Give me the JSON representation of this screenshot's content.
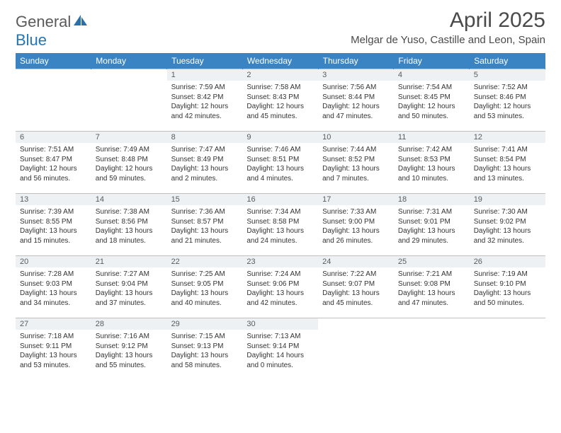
{
  "logo": {
    "general": "General",
    "blue": "Blue"
  },
  "title": "April 2025",
  "location": "Melgar de Yuso, Castille and Leon, Spain",
  "headers": [
    "Sunday",
    "Monday",
    "Tuesday",
    "Wednesday",
    "Thursday",
    "Friday",
    "Saturday"
  ],
  "colors": {
    "header_bg": "#3a84c4",
    "header_text": "#ffffff",
    "daynum_bg": "#eef1f4",
    "border": "#c0c0c0",
    "body_text": "#333333",
    "title_text": "#4a4a4a",
    "logo_gray": "#5a5a5a",
    "logo_blue": "#2176b8"
  },
  "weeks": [
    [
      null,
      null,
      {
        "n": "1",
        "sr": "7:59 AM",
        "ss": "8:42 PM",
        "dl": "12 hours and 42 minutes."
      },
      {
        "n": "2",
        "sr": "7:58 AM",
        "ss": "8:43 PM",
        "dl": "12 hours and 45 minutes."
      },
      {
        "n": "3",
        "sr": "7:56 AM",
        "ss": "8:44 PM",
        "dl": "12 hours and 47 minutes."
      },
      {
        "n": "4",
        "sr": "7:54 AM",
        "ss": "8:45 PM",
        "dl": "12 hours and 50 minutes."
      },
      {
        "n": "5",
        "sr": "7:52 AM",
        "ss": "8:46 PM",
        "dl": "12 hours and 53 minutes."
      }
    ],
    [
      {
        "n": "6",
        "sr": "7:51 AM",
        "ss": "8:47 PM",
        "dl": "12 hours and 56 minutes."
      },
      {
        "n": "7",
        "sr": "7:49 AM",
        "ss": "8:48 PM",
        "dl": "12 hours and 59 minutes."
      },
      {
        "n": "8",
        "sr": "7:47 AM",
        "ss": "8:49 PM",
        "dl": "13 hours and 2 minutes."
      },
      {
        "n": "9",
        "sr": "7:46 AM",
        "ss": "8:51 PM",
        "dl": "13 hours and 4 minutes."
      },
      {
        "n": "10",
        "sr": "7:44 AM",
        "ss": "8:52 PM",
        "dl": "13 hours and 7 minutes."
      },
      {
        "n": "11",
        "sr": "7:42 AM",
        "ss": "8:53 PM",
        "dl": "13 hours and 10 minutes."
      },
      {
        "n": "12",
        "sr": "7:41 AM",
        "ss": "8:54 PM",
        "dl": "13 hours and 13 minutes."
      }
    ],
    [
      {
        "n": "13",
        "sr": "7:39 AM",
        "ss": "8:55 PM",
        "dl": "13 hours and 15 minutes."
      },
      {
        "n": "14",
        "sr": "7:38 AM",
        "ss": "8:56 PM",
        "dl": "13 hours and 18 minutes."
      },
      {
        "n": "15",
        "sr": "7:36 AM",
        "ss": "8:57 PM",
        "dl": "13 hours and 21 minutes."
      },
      {
        "n": "16",
        "sr": "7:34 AM",
        "ss": "8:58 PM",
        "dl": "13 hours and 24 minutes."
      },
      {
        "n": "17",
        "sr": "7:33 AM",
        "ss": "9:00 PM",
        "dl": "13 hours and 26 minutes."
      },
      {
        "n": "18",
        "sr": "7:31 AM",
        "ss": "9:01 PM",
        "dl": "13 hours and 29 minutes."
      },
      {
        "n": "19",
        "sr": "7:30 AM",
        "ss": "9:02 PM",
        "dl": "13 hours and 32 minutes."
      }
    ],
    [
      {
        "n": "20",
        "sr": "7:28 AM",
        "ss": "9:03 PM",
        "dl": "13 hours and 34 minutes."
      },
      {
        "n": "21",
        "sr": "7:27 AM",
        "ss": "9:04 PM",
        "dl": "13 hours and 37 minutes."
      },
      {
        "n": "22",
        "sr": "7:25 AM",
        "ss": "9:05 PM",
        "dl": "13 hours and 40 minutes."
      },
      {
        "n": "23",
        "sr": "7:24 AM",
        "ss": "9:06 PM",
        "dl": "13 hours and 42 minutes."
      },
      {
        "n": "24",
        "sr": "7:22 AM",
        "ss": "9:07 PM",
        "dl": "13 hours and 45 minutes."
      },
      {
        "n": "25",
        "sr": "7:21 AM",
        "ss": "9:08 PM",
        "dl": "13 hours and 47 minutes."
      },
      {
        "n": "26",
        "sr": "7:19 AM",
        "ss": "9:10 PM",
        "dl": "13 hours and 50 minutes."
      }
    ],
    [
      {
        "n": "27",
        "sr": "7:18 AM",
        "ss": "9:11 PM",
        "dl": "13 hours and 53 minutes."
      },
      {
        "n": "28",
        "sr": "7:16 AM",
        "ss": "9:12 PM",
        "dl": "13 hours and 55 minutes."
      },
      {
        "n": "29",
        "sr": "7:15 AM",
        "ss": "9:13 PM",
        "dl": "13 hours and 58 minutes."
      },
      {
        "n": "30",
        "sr": "7:13 AM",
        "ss": "9:14 PM",
        "dl": "14 hours and 0 minutes."
      },
      null,
      null,
      null
    ]
  ],
  "labels": {
    "sunrise": "Sunrise:",
    "sunset": "Sunset:",
    "daylight": "Daylight:"
  }
}
